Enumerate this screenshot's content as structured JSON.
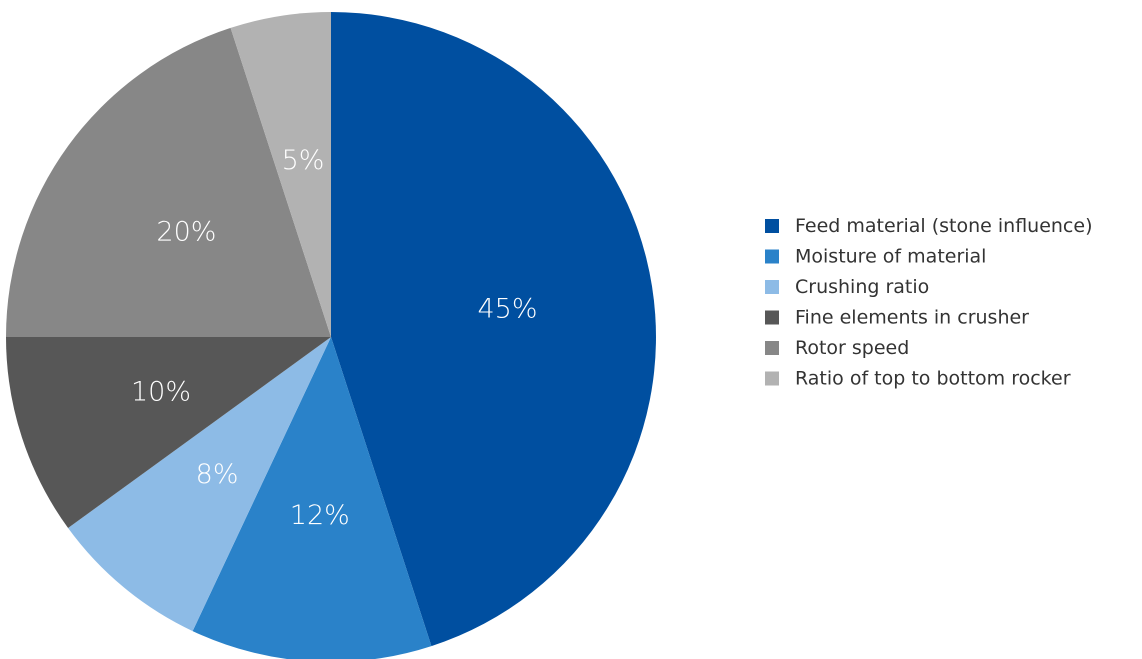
{
  "chart_data": {
    "type": "pie",
    "categories": [
      "Feed material (stone influence)",
      "Moisture of material",
      "Crushing ratio",
      "Fine elements in crusher",
      "Rotor speed",
      "Ratio of top to bottom rocker"
    ],
    "values": [
      45,
      12,
      8,
      10,
      20,
      5
    ],
    "data_labels": [
      "45%",
      "12%",
      "8%",
      "10%",
      "20%",
      "5%"
    ],
    "colors": [
      "#004fa0",
      "#2a82c9",
      "#8dbbe6",
      "#575757",
      "#878787",
      "#b2b2b2"
    ],
    "start": "12 o'clock",
    "direction": "clockwise",
    "legend_position": "right",
    "title": ""
  }
}
